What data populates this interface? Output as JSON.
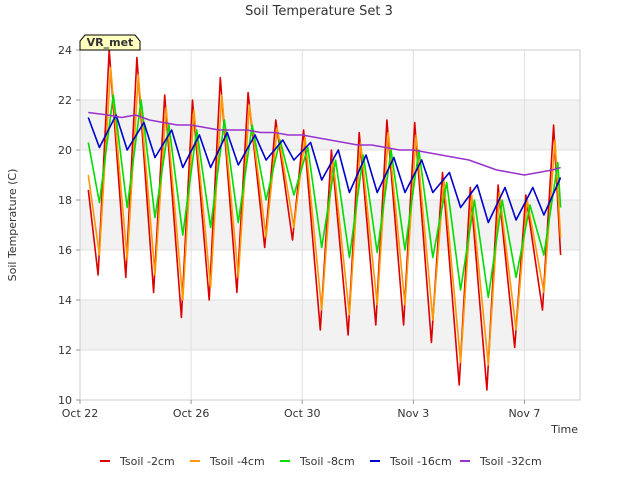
{
  "chart_data": {
    "type": "line",
    "title": "Soil Temperature Set 3",
    "xlabel": "Time",
    "ylabel": "Soil Temperature (C)",
    "badge": "VR_met",
    "ylim": [
      10,
      24
    ],
    "yticks": [
      10,
      12,
      14,
      16,
      18,
      20,
      22,
      24
    ],
    "xlim": [
      0,
      18
    ],
    "xticks": [
      {
        "pos": 0,
        "label": "Oct 22"
      },
      {
        "pos": 4,
        "label": "Oct 26"
      },
      {
        "pos": 8,
        "label": "Oct 30"
      },
      {
        "pos": 12,
        "label": "Nov 3"
      },
      {
        "pos": 16,
        "label": "Nov 7"
      }
    ],
    "grid_bands": true,
    "legend_position": "bottom",
    "series": [
      {
        "name": "Tsoil -2cm",
        "color": "#dd0000",
        "x": [
          0.3,
          0.65,
          1.05,
          1.65,
          2.05,
          2.65,
          3.05,
          3.65,
          4.05,
          4.65,
          5.05,
          5.65,
          6.05,
          6.65,
          7.05,
          7.65,
          8.05,
          8.65,
          9.05,
          9.65,
          10.05,
          10.65,
          11.05,
          11.65,
          12.05,
          12.65,
          13.05,
          13.65,
          14.05,
          14.65,
          15.05,
          15.65,
          16.05,
          16.65,
          17.05,
          17.3
        ],
        "values": [
          18.4,
          15.0,
          24.0,
          14.9,
          23.7,
          14.3,
          22.2,
          13.3,
          22.0,
          14.0,
          22.9,
          14.3,
          22.3,
          16.1,
          21.2,
          16.4,
          20.8,
          12.8,
          20.0,
          12.6,
          20.7,
          13.0,
          21.2,
          13.0,
          21.1,
          12.3,
          19.1,
          10.6,
          18.5,
          10.4,
          18.6,
          12.1,
          18.2,
          13.6,
          21.0,
          15.8
        ]
      },
      {
        "name": "Tsoil -4cm",
        "color": "#ff9900",
        "x": [
          0.3,
          0.7,
          1.1,
          1.7,
          2.1,
          2.7,
          3.1,
          3.7,
          4.1,
          4.7,
          5.1,
          5.7,
          6.1,
          6.7,
          7.1,
          7.7,
          8.1,
          8.7,
          9.1,
          9.7,
          10.1,
          10.7,
          11.1,
          11.7,
          12.1,
          12.7,
          13.1,
          13.7,
          14.1,
          14.7,
          15.1,
          15.7,
          16.1,
          16.7,
          17.1,
          17.3
        ],
        "values": [
          19.0,
          15.8,
          23.3,
          15.6,
          23.0,
          15.0,
          21.7,
          14.0,
          21.6,
          14.5,
          22.2,
          14.9,
          21.8,
          16.5,
          20.9,
          16.9,
          20.5,
          13.6,
          19.7,
          13.4,
          20.3,
          13.8,
          20.7,
          13.8,
          20.6,
          13.2,
          18.8,
          11.5,
          18.2,
          11.4,
          18.3,
          12.8,
          18.0,
          14.3,
          20.4,
          16.5
        ]
      },
      {
        "name": "Tsoil -8cm",
        "color": "#00dd00",
        "x": [
          0.3,
          0.7,
          1.2,
          1.7,
          2.2,
          2.7,
          3.2,
          3.7,
          4.2,
          4.7,
          5.2,
          5.7,
          6.2,
          6.7,
          7.2,
          7.7,
          8.2,
          8.7,
          9.2,
          9.7,
          10.2,
          10.7,
          11.2,
          11.7,
          12.2,
          12.7,
          13.2,
          13.7,
          14.2,
          14.7,
          15.2,
          15.7,
          16.2,
          16.7,
          17.2,
          17.3
        ],
        "values": [
          20.3,
          17.9,
          22.2,
          17.7,
          22.0,
          17.3,
          21.0,
          16.6,
          20.8,
          16.9,
          21.2,
          17.1,
          21.0,
          18.0,
          20.4,
          18.2,
          20.1,
          16.1,
          19.6,
          15.7,
          19.8,
          15.9,
          20.0,
          16.0,
          20.0,
          15.7,
          18.7,
          14.4,
          18.0,
          14.1,
          18.0,
          14.9,
          17.8,
          15.8,
          19.5,
          17.7
        ]
      },
      {
        "name": "Tsoil -16cm",
        "color": "#0000cc",
        "x": [
          0.3,
          0.7,
          1.3,
          1.7,
          2.3,
          2.7,
          3.3,
          3.7,
          4.3,
          4.7,
          5.3,
          5.7,
          6.3,
          6.7,
          7.3,
          7.7,
          8.3,
          8.7,
          9.3,
          9.7,
          10.3,
          10.7,
          11.3,
          11.7,
          12.3,
          12.7,
          13.3,
          13.7,
          14.3,
          14.7,
          15.3,
          15.7,
          16.3,
          16.7,
          17.3
        ],
        "values": [
          21.3,
          20.1,
          21.4,
          20.0,
          21.1,
          19.7,
          20.8,
          19.3,
          20.6,
          19.3,
          20.7,
          19.4,
          20.6,
          19.6,
          20.4,
          19.6,
          20.3,
          18.8,
          20.0,
          18.3,
          19.8,
          18.3,
          19.7,
          18.3,
          19.6,
          18.3,
          19.1,
          17.7,
          18.6,
          17.1,
          18.5,
          17.2,
          18.5,
          17.4,
          18.9
        ]
      },
      {
        "name": "Tsoil -32cm",
        "color": "#9933cc",
        "x": [
          0.3,
          1.0,
          1.5,
          2.0,
          2.5,
          3.0,
          3.5,
          4.0,
          4.5,
          5.0,
          5.5,
          6.0,
          6.5,
          7.0,
          7.5,
          8.0,
          8.5,
          9.0,
          9.5,
          10.0,
          10.5,
          11.0,
          11.5,
          12.0,
          12.5,
          13.0,
          13.5,
          14.0,
          14.5,
          15.0,
          15.5,
          16.0,
          16.5,
          17.0,
          17.3
        ],
        "values": [
          21.5,
          21.4,
          21.3,
          21.4,
          21.2,
          21.1,
          21.0,
          21.0,
          20.9,
          20.8,
          20.8,
          20.8,
          20.7,
          20.7,
          20.6,
          20.6,
          20.5,
          20.4,
          20.3,
          20.2,
          20.2,
          20.1,
          20.0,
          20.0,
          19.9,
          19.8,
          19.7,
          19.6,
          19.4,
          19.2,
          19.1,
          19.0,
          19.1,
          19.2,
          19.3
        ]
      }
    ]
  }
}
